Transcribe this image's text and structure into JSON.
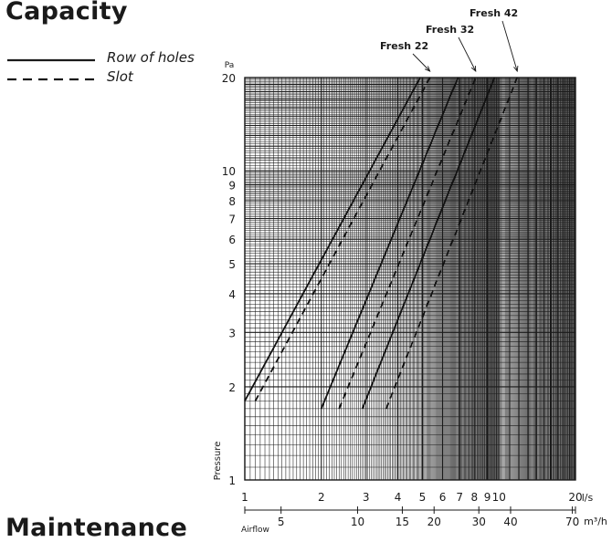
{
  "page": {
    "title": "Capacity",
    "next_heading": "Maintenance"
  },
  "legend": [
    {
      "label": "Row of holes",
      "style": "solid"
    },
    {
      "label": "Slot",
      "style": "dashed"
    }
  ],
  "chart_data": {
    "type": "line",
    "title": "Capacity",
    "ylabel": "Pressure",
    "yunit": "Pa",
    "xlabel": "Airflow",
    "xunit_primary": "l/s",
    "xunit_secondary": "m³/h",
    "xscale": "log",
    "yscale": "log",
    "xlim": [
      1,
      20
    ],
    "ylim": [
      1,
      20
    ],
    "grid": true,
    "x_ticks": [
      "1",
      "2",
      "3",
      "4",
      "5",
      "6",
      "7",
      "8",
      "9",
      "10",
      "20"
    ],
    "x2_ticks": [
      "5",
      "10",
      "15",
      "20",
      "30",
      "40",
      "70"
    ],
    "y_ticks": [
      "1",
      "2",
      "3",
      "4",
      "5",
      "6",
      "7",
      "8",
      "9",
      "10",
      "20"
    ],
    "series": [
      {
        "name": "Fresh 22",
        "type": "Row of holes",
        "style": "solid",
        "points": [
          [
            1.0,
            1.8
          ],
          [
            4.9,
            20
          ]
        ]
      },
      {
        "name": "Fresh 22",
        "type": "Slot",
        "style": "dashed",
        "points": [
          [
            1.1,
            1.8
          ],
          [
            5.35,
            20
          ]
        ]
      },
      {
        "name": "Fresh 32",
        "type": "Row of holes",
        "style": "solid",
        "points": [
          [
            2.0,
            1.7
          ],
          [
            6.9,
            20
          ]
        ]
      },
      {
        "name": "Fresh 32",
        "type": "Slot",
        "style": "dashed",
        "points": [
          [
            2.35,
            1.7
          ],
          [
            8.1,
            20
          ]
        ]
      },
      {
        "name": "Fresh 42",
        "type": "Row of holes",
        "style": "solid",
        "points": [
          [
            2.9,
            1.7
          ],
          [
            9.6,
            20
          ]
        ]
      },
      {
        "name": "Fresh 42",
        "type": "Slot",
        "style": "dashed",
        "points": [
          [
            3.6,
            1.7
          ],
          [
            11.8,
            20
          ]
        ]
      }
    ],
    "annotations": [
      {
        "text": "Fresh 22",
        "target": [
          5.35,
          20
        ]
      },
      {
        "text": "Fresh 32",
        "target": [
          8.1,
          20
        ]
      },
      {
        "text": "Fresh 42",
        "target": [
          11.8,
          20
        ]
      }
    ]
  }
}
